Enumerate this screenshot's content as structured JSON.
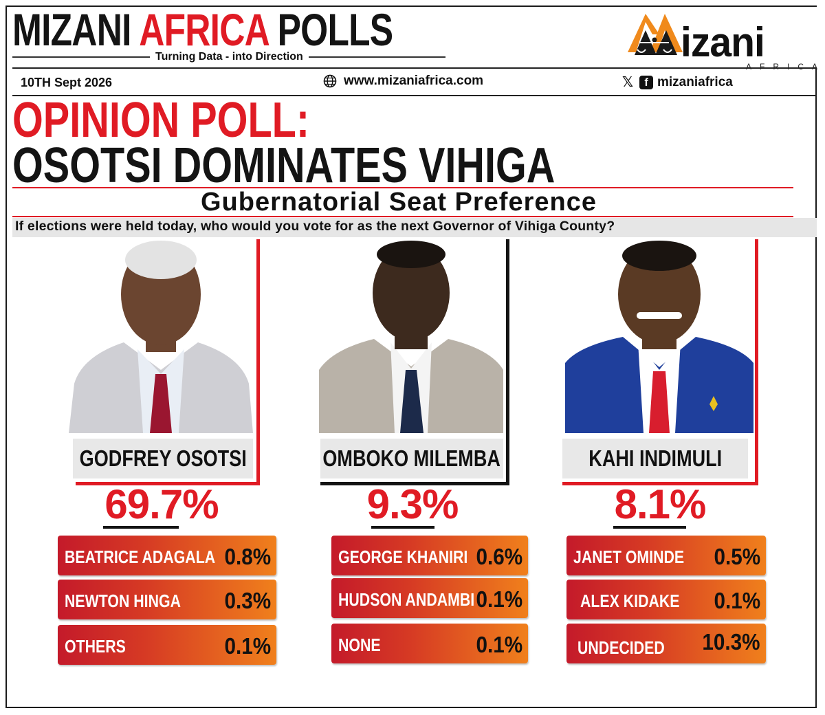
{
  "header": {
    "brand_part1": "MIZANI",
    "brand_part2": "AFRICA",
    "brand_part3": "POLLS",
    "tagline": "Turning Data - into Direction",
    "logo_text": "izani",
    "logo_sub": "AFRICA",
    "date": "10TH Sept 2026",
    "website": "www.mizaniafrica.com",
    "social_handle": "mizaniafrica",
    "icons": [
      "globe-icon",
      "x-logo-icon",
      "facebook-icon"
    ]
  },
  "headline": {
    "line1": "OPINION POLL:",
    "line2": "OSOTSI DOMINATES VIHIGA",
    "subheading": "Gubernatorial Seat Preference",
    "question": "If elections were held today, who would you vote for as the next Governor of Vihiga County?"
  },
  "colors": {
    "accent_red": "#e01b24",
    "dark": "#141414",
    "bar_gradient_start": "#c41a2a",
    "bar_gradient_end": "#f0801c"
  },
  "candidates": [
    {
      "name": "GODFREY OSOTSI",
      "percent": "69.7%",
      "frame_color": "#e01b24",
      "others": [
        {
          "name": "BEATRICE ADAGALA",
          "percent": "0.8%"
        },
        {
          "name": "NEWTON HINGA",
          "percent": "0.3%"
        },
        {
          "name": "OTHERS",
          "percent": "0.1%"
        }
      ]
    },
    {
      "name": "OMBOKO MILEMBA",
      "percent": "9.3%",
      "frame_color": "#141414",
      "others": [
        {
          "name": "GEORGE KHANIRI",
          "percent": "0.6%"
        },
        {
          "name": "HUDSON ANDAMBI",
          "percent": "0.1%"
        },
        {
          "name": "NONE",
          "percent": "0.1%"
        }
      ]
    },
    {
      "name": "KAHI INDIMULI",
      "percent": "8.1%",
      "frame_color": "#e01b24",
      "others": [
        {
          "name": "JANET OMINDE",
          "percent": "0.5%"
        },
        {
          "name": "ALEX KIDAKE",
          "percent": "0.1%"
        },
        {
          "name": "UNDECIDED",
          "percent": "10.3%"
        }
      ]
    }
  ]
}
